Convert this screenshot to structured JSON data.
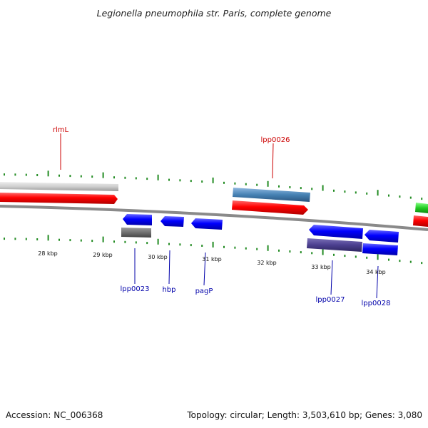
{
  "title": "Legionella pneumophila str. Paris, complete genome",
  "footer": {
    "accession": "Accession: NC_006368",
    "topology": "Topology: circular; Length: 3,503,610 bp; Genes: 3,080"
  },
  "scale_labels": [
    "28 kbp",
    "29 kbp",
    "30 kbp",
    "31 kbp",
    "32 kbp",
    "33 kbp",
    "34 kbp"
  ],
  "gene_labels": {
    "rlmL": "rlmL",
    "lpp0026": "lpp0026",
    "lpp0023": "lpp0023",
    "hbp": "hbp",
    "pagP": "pagP",
    "lpp0027": "lpp0027",
    "lpp0028": "lpp0028"
  },
  "colors": {
    "forward_cds": "#ff0000",
    "reverse_cds": "#0000ff",
    "gray_feature": "#c8c8c8",
    "dark_gray_feature": "#707070",
    "steel_feature": "#4682b4",
    "purple_feature": "#4b3f8f",
    "green_feature": "#22cc22",
    "tick_green": "#228b22",
    "backbone": "#808080"
  }
}
